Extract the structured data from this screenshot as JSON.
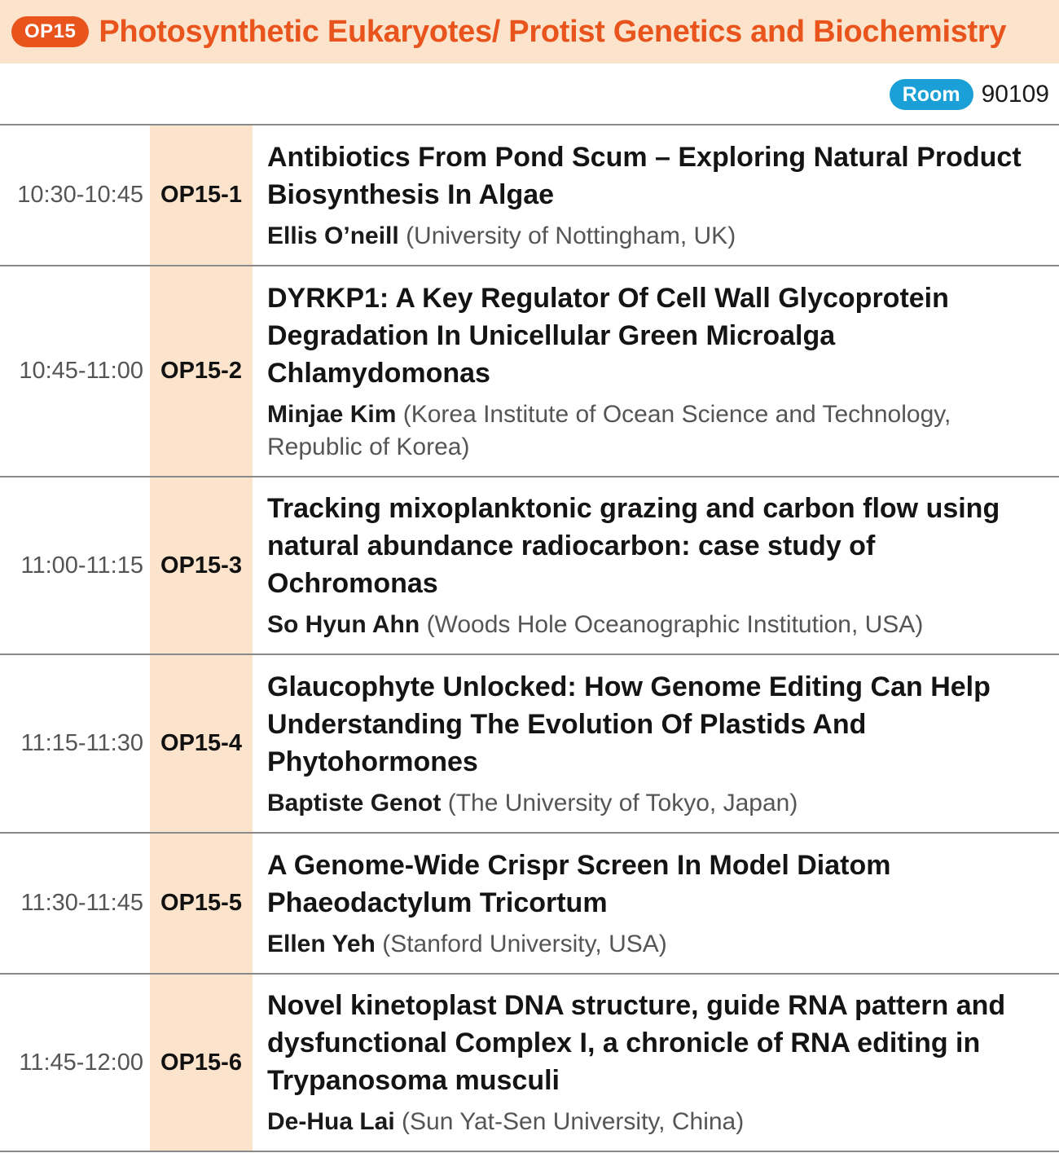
{
  "header": {
    "badge": "OP15",
    "title": "Photosynthetic Eukaryotes/ Protist Genetics and Biochemistry"
  },
  "room": {
    "label": "Room",
    "number": "90109"
  },
  "talks": [
    {
      "time": "10:30-10:45",
      "code": "OP15-1",
      "title": "Antibiotics From Pond Scum – Exploring Natural Product Biosynthesis In Algae",
      "speaker": "Ellis O’neill",
      "affiliation": "(University of Nottingham, UK)"
    },
    {
      "time": "10:45-11:00",
      "code": "OP15-2",
      "title": "DYRKP1: A Key Regulator Of Cell Wall Glycoprotein Degradation In Unicellular Green Microalga Chlamydomonas",
      "speaker": "Minjae Kim",
      "affiliation": "(Korea Institute of Ocean Science and Technology, Republic of Korea)"
    },
    {
      "time": "11:00-11:15",
      "code": "OP15-3",
      "title": "Tracking mixoplanktonic grazing and carbon flow using natural abundance radiocarbon: case study of Ochromonas",
      "speaker": "So Hyun Ahn",
      "affiliation": "(Woods Hole Oceanographic Institution, USA)"
    },
    {
      "time": "11:15-11:30",
      "code": "OP15-4",
      "title": "Glaucophyte Unlocked: How Genome Editing Can Help Understanding The Evolution Of Plastids And Phytohormones",
      "speaker": "Baptiste Genot",
      "affiliation": "(The University of Tokyo, Japan)"
    },
    {
      "time": "11:30-11:45",
      "code": "OP15-5",
      "title": "A Genome-Wide Crispr Screen In Model Diatom Phaeodactylum Tricortum",
      "speaker": "Ellen Yeh",
      "affiliation": "(Stanford University, USA)"
    },
    {
      "time": "11:45-12:00",
      "code": "OP15-6",
      "title": "Novel kinetoplast DNA structure, guide RNA pattern and dysfunctional Complex I, a chronicle of RNA editing in Trypanosoma musculi",
      "speaker": "De-Hua Lai",
      "affiliation": "(Sun Yat-Sen University, China)"
    }
  ],
  "colors": {
    "accent": "#e8541c",
    "header_bg": "#fbe3cc",
    "room_badge": "#1aa0d6"
  }
}
